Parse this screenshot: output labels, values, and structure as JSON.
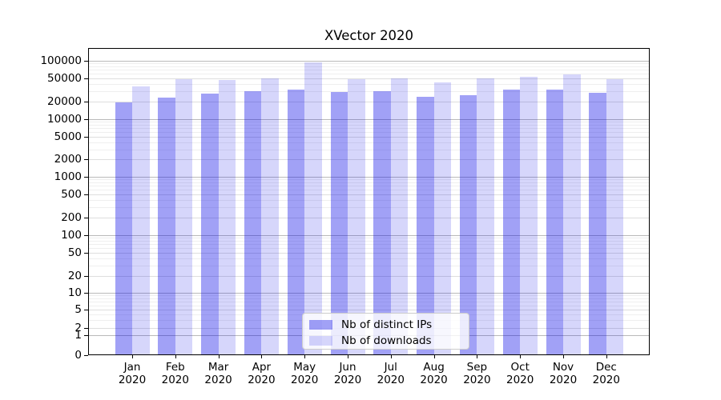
{
  "chart_data": {
    "type": "bar",
    "title": "XVector 2020",
    "categories": [
      "Jan 2020",
      "Feb 2020",
      "Mar 2020",
      "Apr 2020",
      "May 2020",
      "Jun 2020",
      "Jul 2020",
      "Aug 2020",
      "Sep 2020",
      "Oct 2020",
      "Nov 2020",
      "Dec 2020"
    ],
    "series": [
      {
        "name": "Nb of distinct IPs",
        "color": "rgba(0,0,230,0.37)",
        "values": [
          19000,
          23000,
          27000,
          30000,
          32000,
          29000,
          30000,
          24000,
          26000,
          32000,
          32000,
          28000
        ]
      },
      {
        "name": "Nb of downloads",
        "color": "rgba(0,0,230,0.16)",
        "values": [
          36000,
          49000,
          47000,
          50000,
          95000,
          49000,
          50000,
          42000,
          50000,
          54000,
          59000,
          48000
        ]
      }
    ],
    "xlabel": "",
    "ylabel": "",
    "yscale": "symlog-asinh (log-like with linear region near 0)",
    "yticks": [
      0,
      1,
      2,
      5,
      10,
      20,
      50,
      100,
      200,
      500,
      1000,
      2000,
      5000,
      10000,
      20000,
      50000,
      100000
    ],
    "ylim": [
      0,
      167000
    ],
    "grid": "horizontal major and minor gridlines",
    "legend_position": "lower center inside plot"
  }
}
